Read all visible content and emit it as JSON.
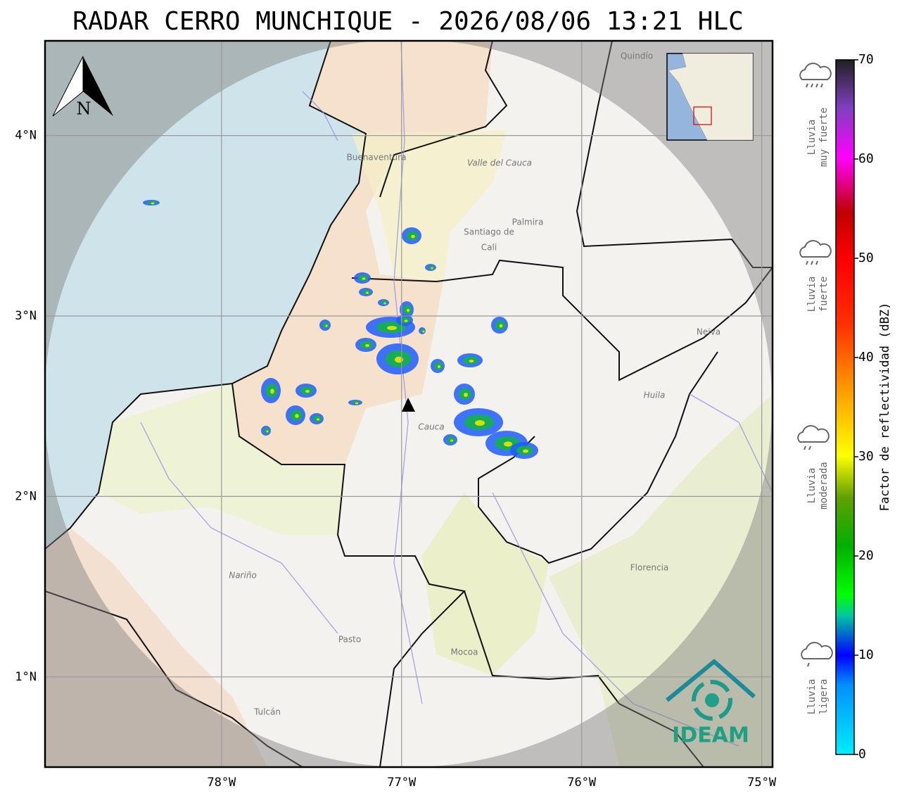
{
  "chart_data": {
    "type": "map",
    "title": "RADAR CERRO MUNCHIQUE - 2026/08/06 13:21 HLC",
    "xlim": [
      -78.98,
      -74.94
    ],
    "ylim": [
      0.5,
      4.525
    ],
    "xticks": [
      {
        "value": -78,
        "label": "78°W"
      },
      {
        "value": -77,
        "label": "77°W"
      },
      {
        "value": -76,
        "label": "76°W"
      },
      {
        "value": -75,
        "label": "75°W"
      }
    ],
    "yticks": [
      {
        "value": 1,
        "label": "1°N"
      },
      {
        "value": 2,
        "label": "2°N"
      },
      {
        "value": 3,
        "label": "3°N"
      },
      {
        "value": 4,
        "label": "4°N"
      }
    ],
    "grid": true,
    "north_label": "N"
  },
  "colorbar": {
    "label": "Factor de reflectividad (dBZ)",
    "lim": [
      0,
      70
    ],
    "ticks": [
      0,
      10,
      20,
      30,
      40,
      50,
      60,
      70
    ]
  },
  "rain_levels": [
    {
      "lines": [
        "Lluvia",
        "muy fuerte"
      ]
    },
    {
      "lines": [
        "Lluvia",
        "fuerte"
      ]
    },
    {
      "lines": [
        "Lluvia",
        "moderada"
      ]
    },
    {
      "lines": [
        "Lluvia",
        "ligera"
      ]
    }
  ],
  "places": [
    "Quindío",
    "Buenaventura",
    "Valle del Cauca",
    "Palmira",
    "Santiago de",
    "Cali",
    "Neiva",
    "Huila",
    "Cauca",
    "Nariño",
    "Pasto",
    "Mocoa",
    "Florencia",
    "Tulcán"
  ],
  "logo": "IDEAM"
}
